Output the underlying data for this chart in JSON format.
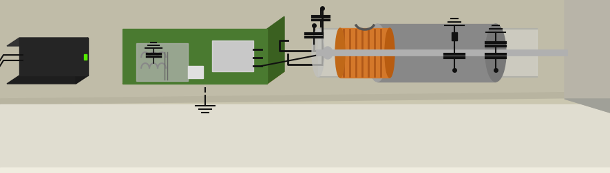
{
  "bg_top": "#cbc7b0",
  "bg_wall": "#d0ccb5",
  "table_surface": "#c0bca8",
  "table_front": "#b8b4a0",
  "table_bottom_strip": "#e0ddd0",
  "bat_front": "#252525",
  "bat_top": "#333333",
  "bat_side": "#1a1a1a",
  "bat_bottom": "#1e1e1e",
  "led_color": "#55ee00",
  "wire_color": "#111111",
  "pcb_surface": "#4a7a30",
  "pcb_side_r": "#3a6020",
  "pcb_edge": "#a07828",
  "pcb_comp_bg": "#c8c8c8",
  "pcb_coil_color": "#888888",
  "pcb_box_color": "#d0d0d0",
  "motor_tube_color": "#c8c8c4",
  "motor_body_dark": "#787878",
  "motor_body_mid": "#888888",
  "motor_body_light": "#a0a0a0",
  "motor_front_ellipse": "#909090",
  "motor_coil_orange": "#d4782a",
  "motor_coil_dark": "#b05818",
  "motor_shaft": "#b0b0b0",
  "motor_brush_light": "#c0c0be",
  "wall_right_bg": "#b8b4a8",
  "wall_right_dark": "#a0a098",
  "fig_width": 8.86,
  "fig_height": 2.53,
  "dpi": 100
}
